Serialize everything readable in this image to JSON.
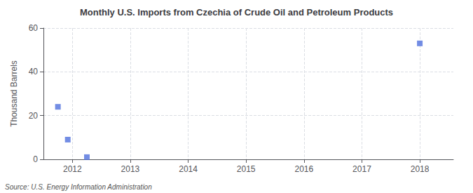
{
  "chart_data": {
    "type": "scatter",
    "title": "Monthly U.S. Imports from Czechia of Crude Oil and Petroleum Products",
    "ylabel": "Thousand Barrels",
    "annotation": "Source: U.S. Energy Information Administration",
    "x": [
      2011.75,
      2011.92,
      2012.25,
      2018.0
    ],
    "values": [
      24,
      9,
      1,
      53
    ],
    "marker": "square",
    "xlim": [
      2011.5,
      2018.58
    ],
    "xticks": [
      2012,
      2013,
      2014,
      2015,
      2016,
      2017,
      2018
    ],
    "ylim": [
      0,
      60
    ],
    "yticks": [
      0,
      20,
      40,
      60
    ],
    "grid": true
  }
}
